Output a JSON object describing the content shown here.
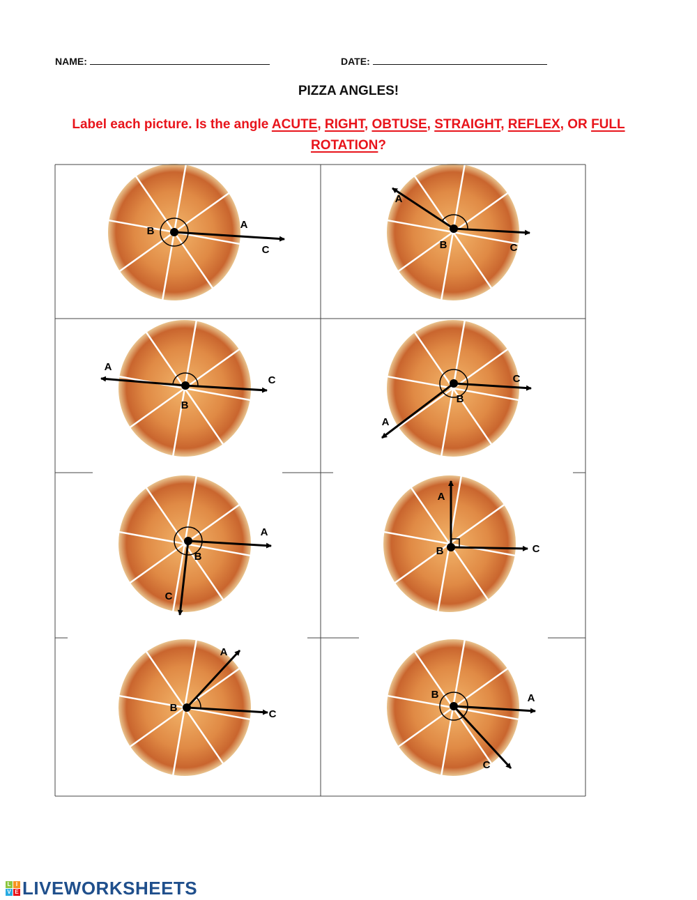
{
  "header": {
    "name_label": "NAME:",
    "date_label": "DATE:"
  },
  "title": "PIZZA ANGLES!",
  "instruction": {
    "prefix": "Label each picture. Is the angle ",
    "terms": [
      "ACUTE",
      "RIGHT",
      "OBTUSE",
      "STRAIGHT",
      "REFLEX",
      "FULL ROTATION"
    ],
    "or_word": "OR",
    "suffix": "?",
    "color": "#e8141b"
  },
  "cells": [
    {
      "a": "A",
      "b": "B",
      "c": "C",
      "marker": "full-circle"
    },
    {
      "a": "A",
      "b": "B",
      "c": "C",
      "marker": "arc"
    },
    {
      "a": "A",
      "b": "B",
      "c": "C",
      "marker": "semicircle"
    },
    {
      "a": "A",
      "b": "B",
      "c": "C",
      "marker": "reflex-arc"
    },
    {
      "a": "A",
      "b": "B",
      "c": "C",
      "marker": "reflex-arc"
    },
    {
      "a": "A",
      "b": "B",
      "c": "C",
      "marker": "right-angle-square"
    },
    {
      "a": "A",
      "b": "B",
      "c": "C",
      "marker": "arc"
    },
    {
      "a": "A",
      "b": "B",
      "c": "C",
      "marker": "reflex-arc"
    }
  ],
  "logo": {
    "tiles": [
      "L",
      "I",
      "V",
      "E"
    ],
    "text": "LIVEWORKSHEETS",
    "brand_color": "#1f4f8c"
  }
}
